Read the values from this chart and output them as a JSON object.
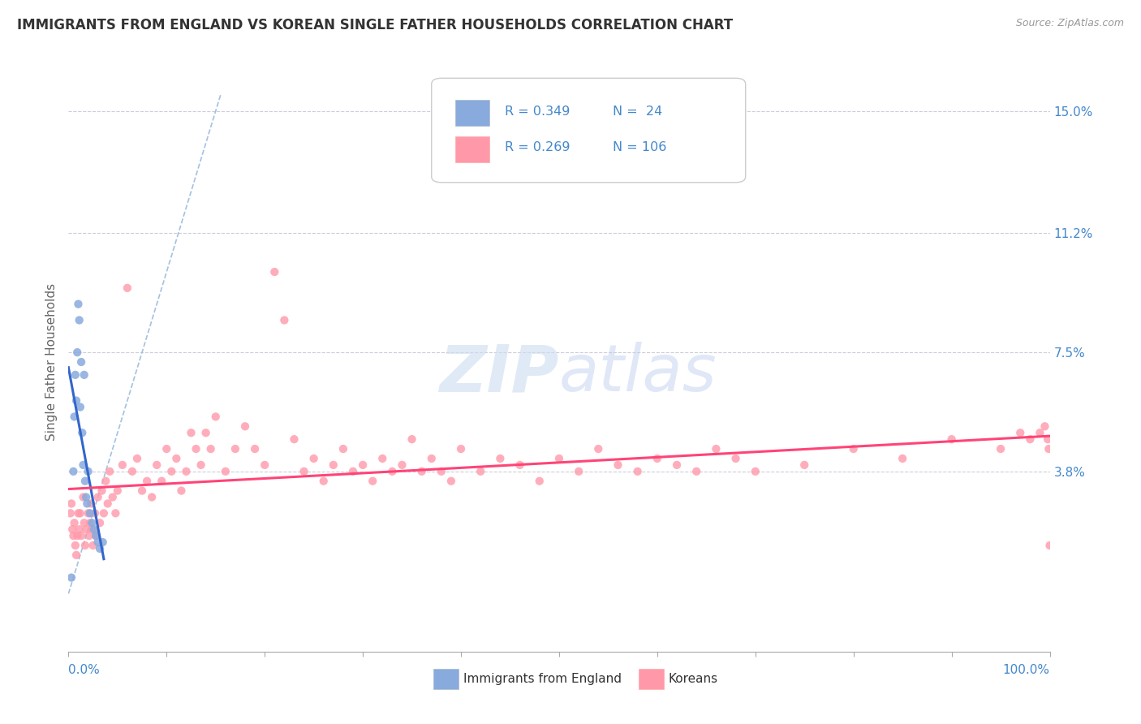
{
  "title": "IMMIGRANTS FROM ENGLAND VS KOREAN SINGLE FATHER HOUSEHOLDS CORRELATION CHART",
  "source": "Source: ZipAtlas.com",
  "ylabel": "Single Father Households",
  "ytick_vals": [
    0.0,
    0.038,
    0.075,
    0.112,
    0.15
  ],
  "ytick_labels": [
    "",
    "3.8%",
    "7.5%",
    "11.2%",
    "15.0%"
  ],
  "xlim": [
    0.0,
    1.0
  ],
  "ylim": [
    -0.018,
    0.162
  ],
  "legend_r1": "R = 0.349",
  "legend_n1": "N =  24",
  "legend_r2": "R = 0.269",
  "legend_n2": "N = 106",
  "legend_label1": "Immigrants from England",
  "legend_label2": "Koreans",
  "color_blue": "#88AADD",
  "color_pink": "#FF99AA",
  "color_trend_blue": "#3366CC",
  "color_trend_pink": "#FF4477",
  "color_diag": "#99BBDD",
  "color_axis_labels": "#4488CC",
  "color_title": "#333333",
  "blue_x": [
    0.003,
    0.005,
    0.006,
    0.007,
    0.008,
    0.009,
    0.01,
    0.011,
    0.012,
    0.013,
    0.014,
    0.015,
    0.016,
    0.017,
    0.018,
    0.019,
    0.02,
    0.022,
    0.024,
    0.026,
    0.028,
    0.03,
    0.032,
    0.035
  ],
  "blue_y": [
    0.005,
    0.038,
    0.055,
    0.068,
    0.06,
    0.075,
    0.09,
    0.085,
    0.058,
    0.072,
    0.05,
    0.04,
    0.068,
    0.035,
    0.03,
    0.028,
    0.038,
    0.025,
    0.022,
    0.02,
    0.018,
    0.016,
    0.014,
    0.016
  ],
  "pink_x": [
    0.002,
    0.003,
    0.004,
    0.005,
    0.006,
    0.007,
    0.008,
    0.009,
    0.01,
    0.011,
    0.012,
    0.013,
    0.015,
    0.016,
    0.017,
    0.018,
    0.02,
    0.021,
    0.022,
    0.023,
    0.024,
    0.025,
    0.027,
    0.028,
    0.03,
    0.032,
    0.034,
    0.036,
    0.038,
    0.04,
    0.042,
    0.045,
    0.048,
    0.05,
    0.055,
    0.06,
    0.065,
    0.07,
    0.075,
    0.08,
    0.085,
    0.09,
    0.095,
    0.1,
    0.105,
    0.11,
    0.115,
    0.12,
    0.125,
    0.13,
    0.135,
    0.14,
    0.145,
    0.15,
    0.16,
    0.17,
    0.18,
    0.19,
    0.2,
    0.21,
    0.22,
    0.23,
    0.24,
    0.25,
    0.26,
    0.27,
    0.28,
    0.29,
    0.3,
    0.31,
    0.32,
    0.33,
    0.34,
    0.35,
    0.36,
    0.37,
    0.38,
    0.39,
    0.4,
    0.42,
    0.44,
    0.46,
    0.48,
    0.5,
    0.52,
    0.54,
    0.56,
    0.58,
    0.6,
    0.62,
    0.64,
    0.66,
    0.68,
    0.7,
    0.75,
    0.8,
    0.85,
    0.9,
    0.95,
    0.97,
    0.98,
    0.99,
    0.995,
    0.998,
    0.999,
    1.0
  ],
  "pink_y": [
    0.025,
    0.028,
    0.02,
    0.018,
    0.022,
    0.015,
    0.012,
    0.018,
    0.025,
    0.02,
    0.025,
    0.018,
    0.03,
    0.022,
    0.015,
    0.02,
    0.025,
    0.018,
    0.022,
    0.028,
    0.02,
    0.015,
    0.025,
    0.018,
    0.03,
    0.022,
    0.032,
    0.025,
    0.035,
    0.028,
    0.038,
    0.03,
    0.025,
    0.032,
    0.04,
    0.095,
    0.038,
    0.042,
    0.032,
    0.035,
    0.03,
    0.04,
    0.035,
    0.045,
    0.038,
    0.042,
    0.032,
    0.038,
    0.05,
    0.045,
    0.04,
    0.05,
    0.045,
    0.055,
    0.038,
    0.045,
    0.052,
    0.045,
    0.04,
    0.1,
    0.085,
    0.048,
    0.038,
    0.042,
    0.035,
    0.04,
    0.045,
    0.038,
    0.04,
    0.035,
    0.042,
    0.038,
    0.04,
    0.048,
    0.038,
    0.042,
    0.038,
    0.035,
    0.045,
    0.038,
    0.042,
    0.04,
    0.035,
    0.042,
    0.038,
    0.045,
    0.04,
    0.038,
    0.042,
    0.04,
    0.038,
    0.045,
    0.042,
    0.038,
    0.04,
    0.045,
    0.042,
    0.048,
    0.045,
    0.05,
    0.048,
    0.05,
    0.052,
    0.048,
    0.045,
    0.015
  ]
}
